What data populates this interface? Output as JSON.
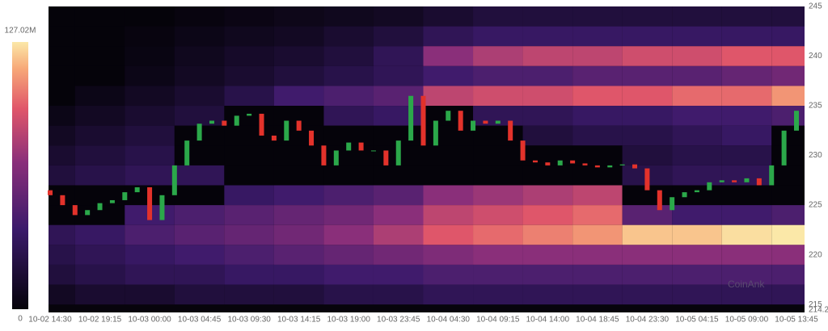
{
  "chart_data": {
    "type": "candlestick-heatmap",
    "watermark": "CoinAnk",
    "categories": [
      "10-02 14:30",
      "10-02 19:15",
      "10-03 00:00",
      "10-03 04:45",
      "10-03 09:30",
      "10-03 14:15",
      "10-03 19:00",
      "10-03 23:45",
      "10-04 04:30",
      "10-04 09:15",
      "10-04 14:00",
      "10-04 18:45",
      "10-04 23:30",
      "10-05 04:15",
      "10-05 09:00",
      "10-05 13:45"
    ],
    "ylim": [
      214.2,
      245
    ],
    "yticks": [
      214.2,
      215,
      220,
      225,
      230,
      235,
      240,
      245
    ],
    "clim": [
      0,
      127.02
    ],
    "colorbar_ticks": [
      0,
      {
        "value": 127.02,
        "label": "127.02M"
      }
    ],
    "up_color": "#2ba84a",
    "down_color": "#e3322b",
    "open": [
      226.5,
      226,
      225,
      224,
      224.5,
      225.2,
      225.5,
      226.3,
      226.8,
      223.5,
      226,
      229,
      231.5,
      233.2,
      233.5,
      233,
      234,
      234.2,
      232,
      231.5,
      233.5,
      232.5,
      231,
      229,
      230.5,
      231.3,
      230.5,
      230.5,
      229,
      231.5,
      236,
      231,
      233.5,
      234.5,
      232.5,
      233.5,
      233.2,
      233.5,
      231.5,
      229.5,
      229.3,
      229,
      229.5,
      229.2,
      229,
      228.8,
      229,
      229.1,
      228.7,
      226.5,
      224.5,
      225.8,
      226.3,
      226.5,
      227.3,
      227.5,
      227.3,
      227.7,
      227,
      229,
      232.5
    ],
    "close": [
      226,
      225,
      224,
      224.5,
      225.2,
      225.5,
      226.3,
      226.8,
      223.5,
      226,
      229,
      231.5,
      233.2,
      233.5,
      233,
      234,
      234.2,
      232,
      231.5,
      233.5,
      232.5,
      231,
      229,
      230.5,
      231.3,
      230.5,
      230.5,
      229,
      231.5,
      236,
      231,
      233.5,
      234.5,
      232.5,
      233.5,
      233.2,
      233.5,
      231.5,
      229.5,
      229.3,
      229,
      229.5,
      229.2,
      229,
      228.8,
      229,
      229.1,
      228.7,
      226.5,
      224.5,
      225.8,
      226.3,
      226.5,
      227.3,
      227.5,
      227.3,
      227.7,
      227,
      229,
      232.5,
      234.5
    ],
    "heatmap": {
      "levels": [
        244,
        242,
        240,
        238,
        236,
        234,
        232,
        230,
        228,
        226,
        224,
        222,
        220,
        218,
        216
      ],
      "values": [
        [
          0,
          0,
          0,
          2,
          4,
          6,
          8,
          10,
          15,
          20,
          20,
          20,
          20,
          20,
          20,
          20
        ],
        [
          0,
          0,
          2,
          5,
          8,
          10,
          15,
          20,
          30,
          35,
          35,
          35,
          35,
          35,
          35,
          35
        ],
        [
          0,
          0,
          3,
          8,
          12,
          15,
          20,
          30,
          70,
          80,
          85,
          85,
          90,
          90,
          95,
          95
        ],
        [
          0,
          0,
          5,
          10,
          15,
          20,
          25,
          30,
          40,
          45,
          45,
          50,
          50,
          50,
          55,
          60
        ],
        [
          0,
          5,
          10,
          15,
          25,
          40,
          45,
          50,
          85,
          90,
          90,
          95,
          95,
          100,
          100,
          110
        ],
        [
          5,
          10,
          15,
          20,
          0,
          0,
          30,
          35,
          0,
          30,
          30,
          35,
          35,
          40,
          40,
          45
        ],
        [
          10,
          15,
          20,
          0,
          0,
          0,
          0,
          0,
          0,
          0,
          20,
          25,
          25,
          30,
          35,
          0
        ],
        [
          15,
          20,
          25,
          0,
          0,
          0,
          0,
          0,
          0,
          0,
          0,
          0,
          20,
          25,
          25,
          0
        ],
        [
          20,
          25,
          30,
          30,
          0,
          0,
          0,
          0,
          0,
          0,
          0,
          0,
          25,
          30,
          30,
          0
        ],
        [
          0,
          0,
          0,
          0,
          35,
          40,
          45,
          50,
          70,
          75,
          80,
          85,
          0,
          0,
          0,
          0
        ],
        [
          0,
          0,
          40,
          45,
          50,
          55,
          60,
          70,
          85,
          90,
          95,
          100,
          50,
          40,
          40,
          45
        ],
        [
          30,
          35,
          45,
          50,
          55,
          60,
          70,
          80,
          95,
          100,
          105,
          110,
          120,
          120,
          125,
          127
        ],
        [
          25,
          30,
          35,
          40,
          45,
          50,
          55,
          60,
          65,
          70,
          70,
          70,
          70,
          70,
          70,
          70
        ],
        [
          20,
          25,
          30,
          30,
          35,
          35,
          40,
          40,
          45,
          45,
          45,
          45,
          45,
          45,
          45,
          45
        ],
        [
          10,
          15,
          15,
          20,
          20,
          20,
          25,
          25,
          30,
          30,
          30,
          30,
          30,
          30,
          30,
          30
        ]
      ]
    }
  }
}
